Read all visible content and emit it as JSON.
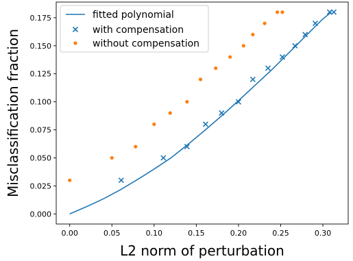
{
  "chart_data": {
    "type": "scatter",
    "title": "",
    "xlabel": "L2 norm of perturbation",
    "ylabel": "Misclassification fraction",
    "xlim": [
      -0.016,
      0.33
    ],
    "ylim": [
      -0.009,
      0.189
    ],
    "xticks": [
      0.0,
      0.05,
      0.1,
      0.15,
      0.2,
      0.25,
      0.3
    ],
    "xtick_labels": [
      "0.00",
      "0.05",
      "0.10",
      "0.15",
      "0.20",
      "0.25",
      "0.30"
    ],
    "yticks": [
      0.0,
      0.025,
      0.05,
      0.075,
      0.1,
      0.125,
      0.15,
      0.175
    ],
    "ytick_labels": [
      "0.000",
      "0.025",
      "0.050",
      "0.075",
      "0.100",
      "0.125",
      "0.150",
      "0.175"
    ],
    "grid": false,
    "legend_position": "top-left",
    "series": [
      {
        "name": "fitted polynomial",
        "kind": "line",
        "color": "#1f77b4",
        "x": [
          0.0,
          0.02,
          0.04,
          0.06,
          0.08,
          0.1,
          0.12,
          0.14,
          0.16,
          0.18,
          0.2,
          0.22,
          0.24,
          0.26,
          0.28,
          0.3,
          0.31
        ],
        "y": [
          0.0,
          0.0065,
          0.0135,
          0.0215,
          0.0305,
          0.04,
          0.05,
          0.062,
          0.0745,
          0.0875,
          0.101,
          0.115,
          0.129,
          0.144,
          0.159,
          0.174,
          0.18
        ]
      },
      {
        "name": "with compensation",
        "kind": "scatter",
        "marker": "x",
        "color": "#1f77b4",
        "x": [
          0.061,
          0.111,
          0.139,
          0.161,
          0.18,
          0.2,
          0.217,
          0.235,
          0.252,
          0.267,
          0.279,
          0.291,
          0.308,
          0.313
        ],
        "y": [
          0.03,
          0.05,
          0.06,
          0.08,
          0.09,
          0.1,
          0.12,
          0.13,
          0.14,
          0.15,
          0.16,
          0.17,
          0.18,
          0.18
        ]
      },
      {
        "name": "without compensation",
        "kind": "scatter",
        "marker": "dot",
        "color": "#ff7f0e",
        "x": [
          0.0,
          0.05,
          0.078,
          0.1,
          0.119,
          0.139,
          0.155,
          0.173,
          0.19,
          0.206,
          0.217,
          0.231,
          0.246,
          0.252
        ],
        "y": [
          0.03,
          0.05,
          0.06,
          0.08,
          0.09,
          0.1,
          0.12,
          0.13,
          0.14,
          0.15,
          0.16,
          0.17,
          0.18,
          0.18
        ]
      }
    ]
  }
}
